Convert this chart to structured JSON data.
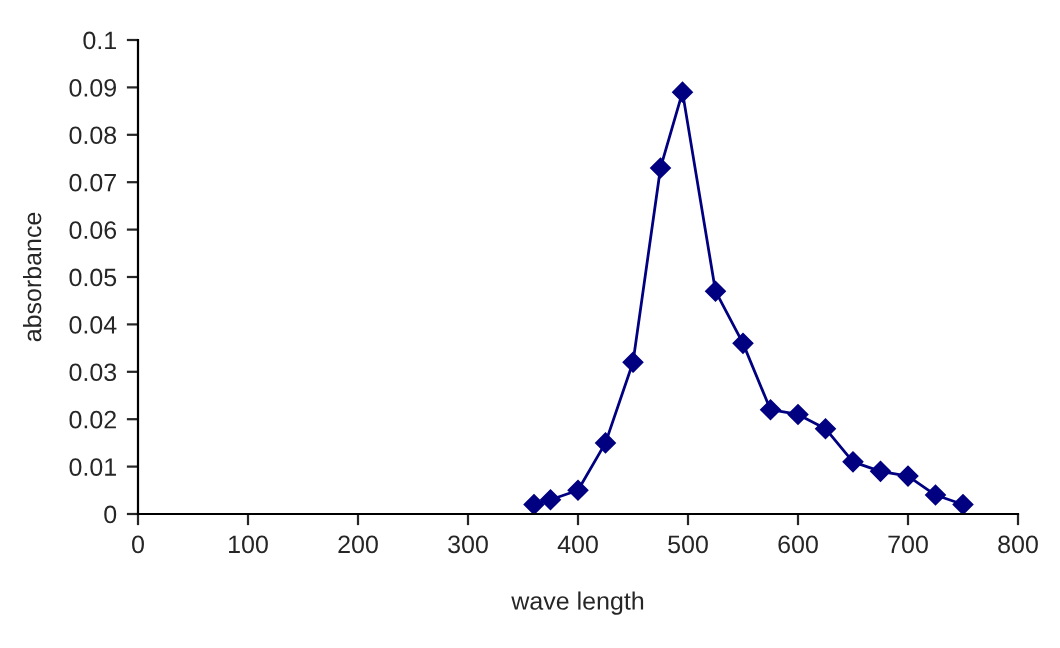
{
  "chart_data": {
    "type": "line",
    "xlabel": "wave length",
    "ylabel": "absorbance",
    "series": [
      {
        "color": "#000080",
        "x": [
          360,
          375,
          400,
          425,
          450,
          475,
          495,
          525,
          550,
          575,
          600,
          625,
          650,
          675,
          700,
          725,
          750
        ],
        "values": [
          0.002,
          0.003,
          0.005,
          0.015,
          0.032,
          0.073,
          0.089,
          0.047,
          0.036,
          0.022,
          0.021,
          0.018,
          0.011,
          0.009,
          0.008,
          0.004,
          0.002
        ]
      }
    ],
    "xlim": [
      0,
      800
    ],
    "xticks": [
      0,
      100,
      200,
      300,
      400,
      500,
      600,
      700,
      800
    ],
    "ylim": [
      0,
      0.1
    ],
    "yticks": [
      0,
      0.01,
      0.02,
      0.03,
      0.04,
      0.05,
      0.06,
      0.07,
      0.08,
      0.09,
      0.1
    ],
    "marker": "diamond",
    "line_style": "solid",
    "grid": false,
    "legend": false
  }
}
